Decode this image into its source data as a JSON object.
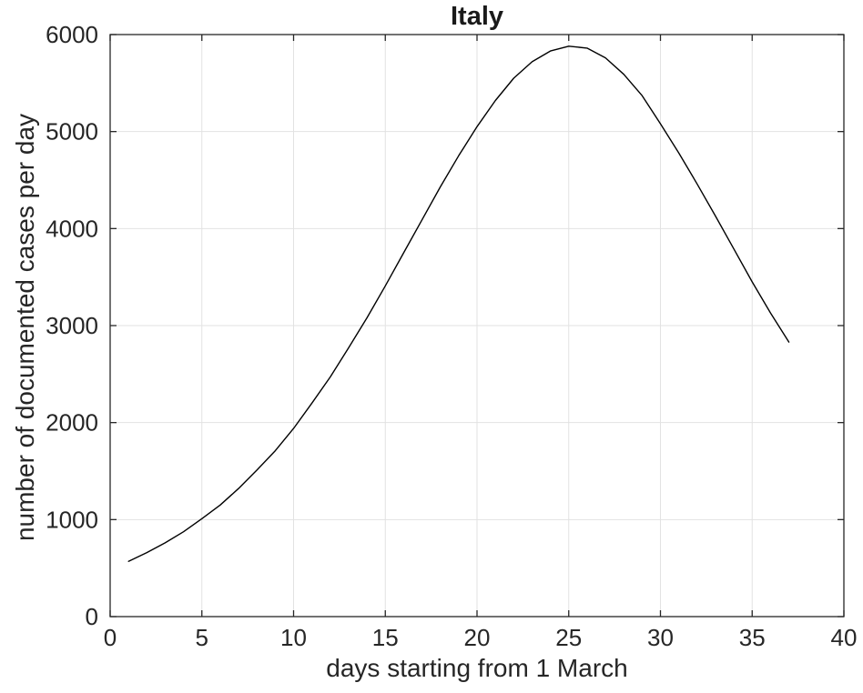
{
  "chart_data": {
    "type": "line",
    "title": "Italy",
    "xlabel": "days starting from 1 March",
    "ylabel": "number of documented cases per day",
    "xlim": [
      0,
      40
    ],
    "ylim": [
      0,
      6000
    ],
    "xticks": [
      0,
      5,
      10,
      15,
      20,
      25,
      30,
      35,
      40
    ],
    "yticks": [
      0,
      1000,
      2000,
      3000,
      4000,
      5000,
      6000
    ],
    "grid": true,
    "legend_position": "none",
    "line_color": "#000000",
    "axes_color": "#262626",
    "grid_color": "#e2e2e2",
    "background_color": "#ffffff",
    "series": [
      {
        "x": [
          1,
          2,
          3,
          4,
          5,
          6,
          7,
          8,
          9,
          10,
          11,
          12,
          13,
          14,
          15,
          16,
          17,
          18,
          19,
          20,
          21,
          22,
          23,
          24,
          25,
          26,
          27,
          28,
          29,
          30,
          31,
          32,
          33,
          34,
          35,
          36,
          37
        ],
        "y": [
          570,
          660,
          760,
          875,
          1010,
          1150,
          1320,
          1510,
          1710,
          1940,
          2200,
          2470,
          2770,
          3080,
          3410,
          3750,
          4090,
          4430,
          4750,
          5050,
          5320,
          5550,
          5720,
          5830,
          5880,
          5860,
          5760,
          5590,
          5370,
          5080,
          4780,
          4460,
          4130,
          3790,
          3450,
          3130,
          2830
        ]
      }
    ]
  }
}
